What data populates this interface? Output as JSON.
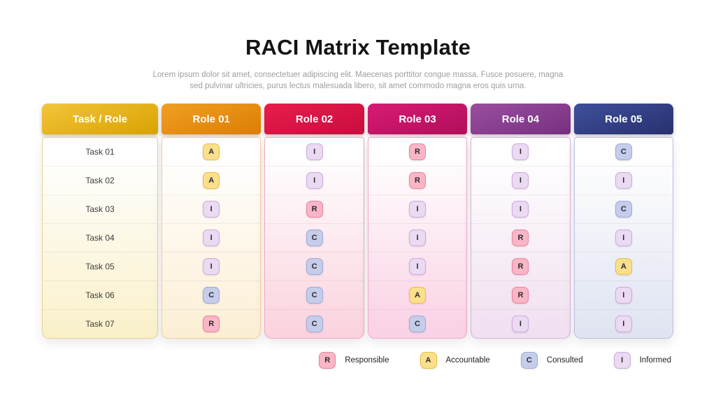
{
  "page": {
    "title": "RACI Matrix Template",
    "subtitle_line1": "Lorem ipsum dolor sit amet, consectetuer adipiscing elit. Maecenas porttitor congue massa. Fusce posuere, magna",
    "subtitle_line2": "sed pulvinar ultricies, purus lectus malesuada libero, sit amet commodo magna eros quis urna."
  },
  "matrix": {
    "columns": [
      {
        "header": "Task / Role",
        "header_gradient": [
          "#F2C53B",
          "#D9A200"
        ],
        "border": "#EBD293",
        "tint": "#FAF1CB"
      },
      {
        "header": "Role 01",
        "header_gradient": [
          "#F0A023",
          "#DC7D05"
        ],
        "border": "#F3CE9B",
        "tint": "#FCEFD6"
      },
      {
        "header": "Role 02",
        "header_gradient": [
          "#E91C4D",
          "#C80D3E"
        ],
        "border": "#F2A9BC",
        "tint": "#FAD3DE"
      },
      {
        "header": "Role 03",
        "header_gradient": [
          "#D81A73",
          "#B00F5C"
        ],
        "border": "#EFA9CB",
        "tint": "#FAD2E5"
      },
      {
        "header": "Role 04",
        "header_gradient": [
          "#9B4EA0",
          "#76307E"
        ],
        "border": "#D8B3D8",
        "tint": "#F1E0F0"
      },
      {
        "header": "Role 05",
        "header_gradient": [
          "#3F4F9B",
          "#28316F"
        ],
        "border": "#B9C0DE",
        "tint": "#E0E4F2"
      }
    ],
    "tasks": [
      "Task 01",
      "Task 02",
      "Task 03",
      "Task 04",
      "Task 05",
      "Task 06",
      "Task 07"
    ],
    "assignments": [
      [
        "A",
        "I",
        "R",
        "I",
        "C"
      ],
      [
        "A",
        "I",
        "R",
        "I",
        "I"
      ],
      [
        "I",
        "R",
        "I",
        "I",
        "C"
      ],
      [
        "I",
        "C",
        "I",
        "R",
        "I"
      ],
      [
        "I",
        "C",
        "I",
        "R",
        "A"
      ],
      [
        "C",
        "C",
        "A",
        "R",
        "I"
      ],
      [
        "R",
        "C",
        "C",
        "I",
        "I"
      ]
    ]
  },
  "badge_styles": {
    "R": {
      "bg": "#F9B6C7",
      "border": "#F0809E"
    },
    "A": {
      "bg": "#FADF8C",
      "border": "#EDBE45"
    },
    "C": {
      "bg": "#C6CDEA",
      "border": "#9DA9D8"
    },
    "I": {
      "bg": "#EADAF2",
      "border": "#CFA9DF"
    }
  },
  "legend": [
    {
      "code": "R",
      "label": "Responsible"
    },
    {
      "code": "A",
      "label": "Accountable"
    },
    {
      "code": "C",
      "label": "Consulted"
    },
    {
      "code": "I",
      "label": "Informed"
    }
  ]
}
